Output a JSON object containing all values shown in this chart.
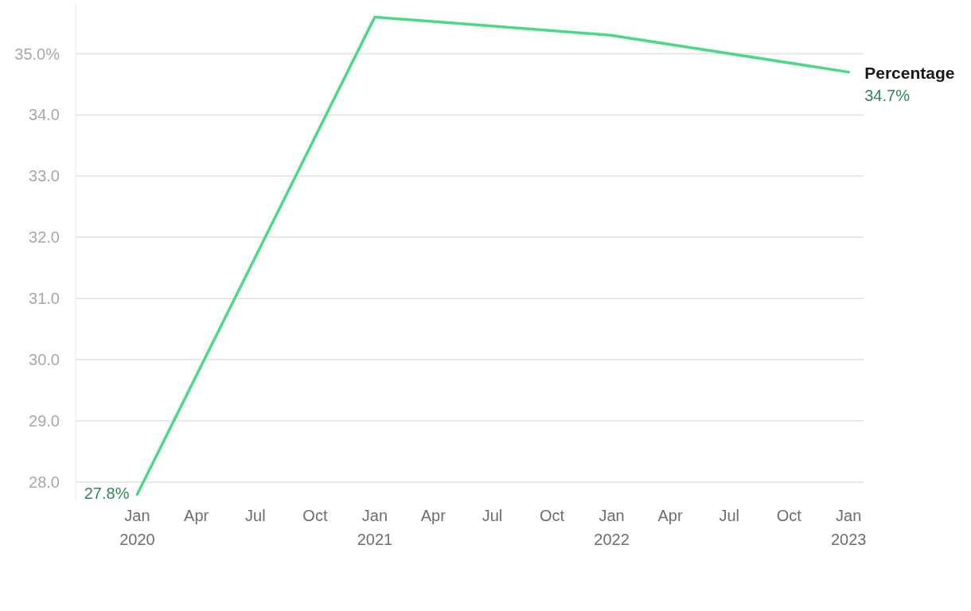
{
  "chart_data": {
    "type": "line",
    "x": [
      "2020-01",
      "2021-01",
      "2022-01",
      "2023-01"
    ],
    "series": [
      {
        "name": "Percentage",
        "color": "#4cd987",
        "values": [
          27.8,
          35.6,
          35.3,
          34.7
        ],
        "value_labels": [
          "27.8%",
          null,
          null,
          "34.7%"
        ]
      }
    ],
    "xlim": [
      "2019-09-28",
      "2023-01-24"
    ],
    "xticks": [
      {
        "value": "2020-01",
        "label": "Jan\n2020"
      },
      {
        "value": "2020-04",
        "label": "Apr"
      },
      {
        "value": "2020-07",
        "label": "Jul"
      },
      {
        "value": "2020-10",
        "label": "Oct"
      },
      {
        "value": "2021-01",
        "label": "Jan\n2021"
      },
      {
        "value": "2021-04",
        "label": "Apr"
      },
      {
        "value": "2021-07",
        "label": "Jul"
      },
      {
        "value": "2021-10",
        "label": "Oct"
      },
      {
        "value": "2022-01",
        "label": "Jan\n2022"
      },
      {
        "value": "2022-04",
        "label": "Apr"
      },
      {
        "value": "2022-07",
        "label": "Jul"
      },
      {
        "value": "2022-10",
        "label": "Oct"
      },
      {
        "value": "2023-01",
        "label": "Jan\n2023"
      }
    ],
    "yticks": [
      {
        "value": 28,
        "label": "28.0"
      },
      {
        "value": 29,
        "label": "29.0"
      },
      {
        "value": 30,
        "label": "30.0"
      },
      {
        "value": 31,
        "label": "31.0"
      },
      {
        "value": 32,
        "label": "32.0"
      },
      {
        "value": 33,
        "label": "33.0"
      },
      {
        "value": 34,
        "label": "34.0"
      },
      {
        "value": 35,
        "label": "35.0%"
      }
    ],
    "ylim": [
      27.7,
      35.8
    ],
    "grid": "y",
    "marker": "none",
    "line_style": "solid"
  }
}
